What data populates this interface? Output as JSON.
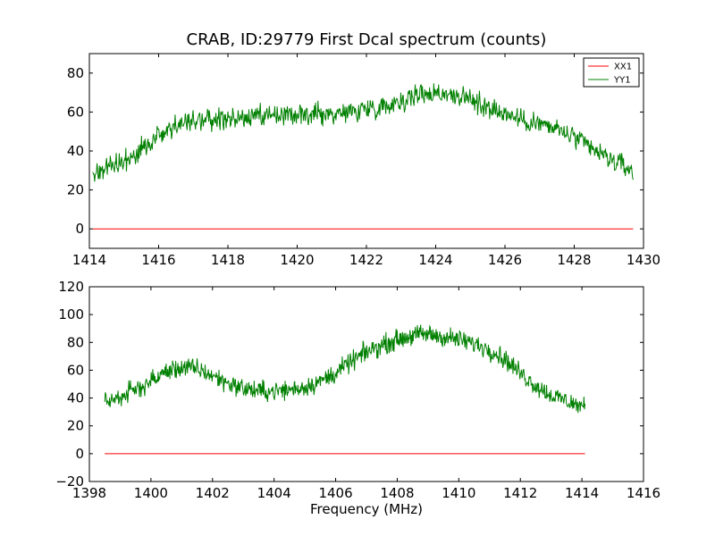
{
  "figure": {
    "title": "CRAB, ID:29779 First Dcal spectrum (counts)",
    "xlabel": "Frequency (MHz)"
  },
  "colors": {
    "xx1": "#ff0000",
    "yy1": "#008000",
    "axes": "#000000",
    "background": "#ffffff"
  },
  "chart_data": [
    {
      "type": "line",
      "title": "CRAB, ID:29779 First Dcal spectrum (counts)",
      "xlabel": "",
      "ylabel": "",
      "xlim": [
        1414,
        1430
      ],
      "ylim": [
        -10,
        90
      ],
      "xticks": [
        1414,
        1416,
        1418,
        1420,
        1422,
        1424,
        1426,
        1428,
        1430
      ],
      "yticks": [
        0,
        20,
        40,
        60,
        80
      ],
      "grid": false,
      "legend": {
        "position": "top-right",
        "entries": [
          "XX1",
          "YY1"
        ]
      },
      "series": [
        {
          "name": "XX1",
          "color": "#ff0000",
          "x": [
            1414.1,
            1429.7
          ],
          "y": [
            0,
            0
          ]
        },
        {
          "name": "YY1",
          "color": "#008000",
          "x": [
            1414.1,
            1414.5,
            1415.0,
            1415.5,
            1416.0,
            1416.5,
            1417.0,
            1417.5,
            1418.0,
            1418.5,
            1419.0,
            1419.5,
            1420.0,
            1420.5,
            1421.0,
            1421.5,
            1422.0,
            1422.5,
            1423.0,
            1423.5,
            1424.0,
            1424.5,
            1425.0,
            1425.5,
            1426.0,
            1426.5,
            1427.0,
            1427.5,
            1428.0,
            1428.5,
            1429.0,
            1429.7
          ],
          "y": [
            29,
            31,
            35,
            40,
            48,
            53,
            55,
            56,
            56,
            57,
            57,
            58,
            58,
            59,
            59,
            60,
            62,
            63,
            66,
            69,
            70,
            69,
            66,
            63,
            59,
            56,
            54,
            51,
            47,
            41,
            36,
            30
          ],
          "noise": 4
        }
      ]
    },
    {
      "type": "line",
      "title": "",
      "xlabel": "Frequency (MHz)",
      "ylabel": "",
      "xlim": [
        1398,
        1416
      ],
      "ylim": [
        -20,
        120
      ],
      "xticks": [
        1398,
        1400,
        1402,
        1404,
        1406,
        1408,
        1410,
        1412,
        1414,
        1416
      ],
      "yticks": [
        -20,
        0,
        20,
        40,
        60,
        80,
        100,
        120
      ],
      "grid": false,
      "series": [
        {
          "name": "XX1",
          "color": "#ff0000",
          "x": [
            1398.5,
            1414.1
          ],
          "y": [
            0,
            0
          ]
        },
        {
          "name": "YY1",
          "color": "#008000",
          "x": [
            1398.5,
            1399.0,
            1399.5,
            1400.0,
            1400.5,
            1401.0,
            1401.5,
            1402.0,
            1402.5,
            1403.0,
            1403.5,
            1404.0,
            1404.5,
            1405.0,
            1405.5,
            1406.0,
            1406.5,
            1407.0,
            1407.5,
            1408.0,
            1408.5,
            1409.0,
            1409.5,
            1410.0,
            1410.5,
            1411.0,
            1411.5,
            1412.0,
            1412.5,
            1413.0,
            1413.5,
            1414.1
          ],
          "y": [
            37,
            41,
            46,
            52,
            59,
            62,
            61,
            56,
            51,
            47,
            45,
            45,
            46,
            48,
            52,
            58,
            66,
            73,
            78,
            82,
            85,
            86,
            84,
            82,
            79,
            75,
            68,
            58,
            49,
            42,
            38,
            33
          ],
          "noise": 5
        }
      ]
    }
  ]
}
